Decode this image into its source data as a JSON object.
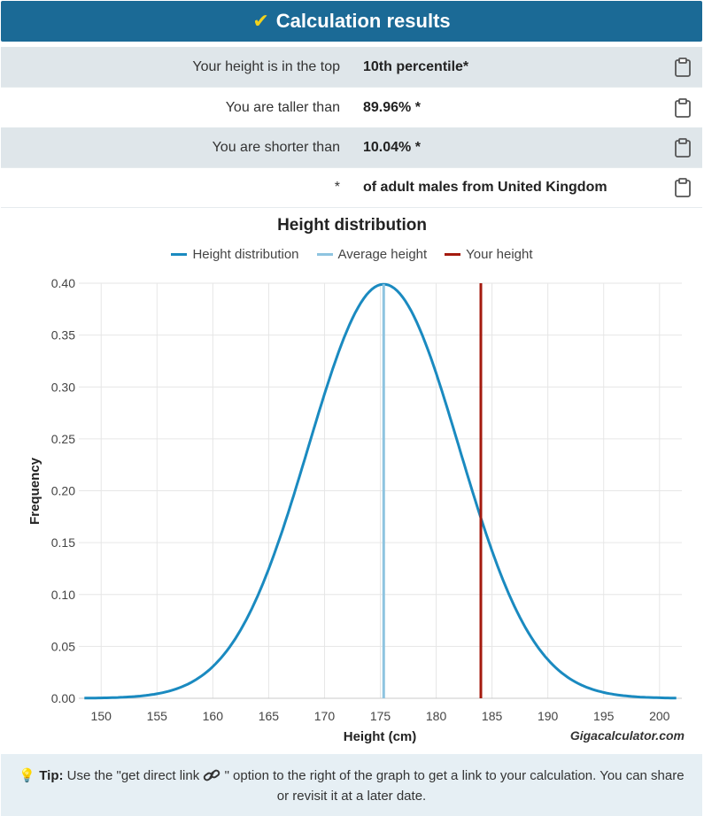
{
  "header": {
    "check_glyph": "✔",
    "title": "Calculation results"
  },
  "results": [
    {
      "label": "Your height is in the top",
      "value": "10th percentile*"
    },
    {
      "label": "You are taller than",
      "value": "89.96% *"
    },
    {
      "label": "You are shorter than",
      "value": "10.04% *"
    },
    {
      "label": "*",
      "value": "of adult males from United Kingdom"
    }
  ],
  "chart_data": {
    "type": "line",
    "title": "Height distribution",
    "xlabel": "Height (cm)",
    "ylabel": "Frequency",
    "watermark": "Gigacalculator.com",
    "xlim": [
      148,
      202
    ],
    "ylim": [
      0,
      0.4
    ],
    "xticks": [
      150,
      155,
      160,
      165,
      170,
      175,
      180,
      185,
      190,
      195,
      200
    ],
    "yticks": [
      "0.00",
      "0.05",
      "0.10",
      "0.15",
      "0.20",
      "0.25",
      "0.30",
      "0.35",
      "0.40"
    ],
    "legend": [
      {
        "name": "Height distribution",
        "color": "#1a8ac0"
      },
      {
        "name": "Average height",
        "color": "#8ec4e0"
      },
      {
        "name": "Your height",
        "color": "#a41a0e"
      }
    ],
    "distribution": {
      "mean": 175.3,
      "sd": 6.75,
      "peak": 0.399
    },
    "average_height": 175.3,
    "your_height": 184
  },
  "tip": {
    "label": "Tip:",
    "text_before": "Use the \"get direct link",
    "text_after": "\" option to the right of the graph to get a link to your calculation. You can share or revisit it at a later date."
  }
}
